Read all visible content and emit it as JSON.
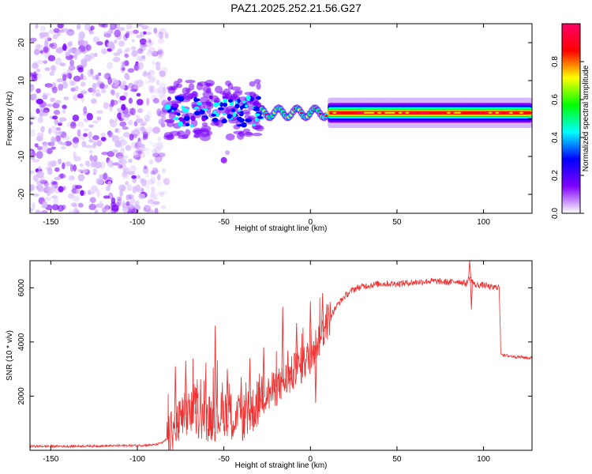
{
  "title": "PAZ1.2025.252.21.56.G27",
  "chart_data": [
    {
      "type": "heatmap",
      "name": "spectrogram",
      "xlabel": "Height of straight line (km)",
      "ylabel": "Frequency (Hz)",
      "xlim": [
        -162,
        128
      ],
      "ylim": [
        -25,
        25
      ],
      "xticks": [
        -150,
        -100,
        -50,
        0,
        50,
        100
      ],
      "yticks": [
        -20,
        -10,
        0,
        10,
        20
      ],
      "colorbar": {
        "label": "Normalized spectral amplitude",
        "range": [
          0.0,
          1.0
        ],
        "ticks": [
          0.0,
          0.2,
          0.4,
          0.6,
          0.8
        ],
        "tick_labels": [
          "0.0",
          "0.2",
          "0.4",
          "0.6",
          "0.8"
        ],
        "colormap": [
          "#ffffff",
          "#8000ff",
          "#0000ff",
          "#00ffff",
          "#00ff00",
          "#ffff00",
          "#ff0000",
          "#ff0066"
        ]
      },
      "features": [
        {
          "region": "noise",
          "x_range": [
            -162,
            -83
          ],
          "freq_range": [
            -25,
            25
          ],
          "amplitude": 0.05
        },
        {
          "region": "turbulent",
          "x_range": [
            -83,
            -28
          ],
          "freq_range": [
            -5,
            10
          ],
          "amplitude": 0.3
        },
        {
          "region": "isolated-blob",
          "x": -50,
          "freq": -11,
          "amplitude": 0.1
        },
        {
          "region": "wavy",
          "x_range": [
            -28,
            10
          ],
          "freq_range": [
            -1,
            4
          ],
          "amplitude": 0.5
        },
        {
          "region": "stable",
          "x_range": [
            10,
            128
          ],
          "freq_center": 1.5,
          "amplitude": 0.85
        }
      ]
    },
    {
      "type": "line",
      "name": "snr",
      "xlabel": "Height of straight line (km)",
      "ylabel": "SNR (10 * v/v)",
      "xlim": [
        -162,
        128
      ],
      "ylim": [
        0,
        7000
      ],
      "xticks": [
        -150,
        -100,
        -50,
        0,
        50,
        100
      ],
      "yticks": [
        2000,
        4000,
        6000
      ],
      "color": "#ee3333",
      "series": [
        {
          "name": "SNR",
          "x": [
            -162,
            -140,
            -120,
            -100,
            -90,
            -85,
            -80,
            -76,
            -72,
            -68,
            -64,
            -60,
            -56,
            -52,
            -48,
            -44,
            -40,
            -36,
            -32,
            -28,
            -24,
            -20,
            -16,
            -12,
            -8,
            -4,
            0,
            4,
            8,
            12,
            16,
            20,
            25,
            30,
            35,
            40,
            50,
            60,
            70,
            80,
            85,
            90,
            92,
            95,
            100,
            105,
            109,
            110,
            112,
            120,
            128
          ],
          "y": [
            150,
            150,
            160,
            180,
            200,
            300,
            600,
            1000,
            1300,
            1400,
            1300,
            1200,
            1200,
            1300,
            1400,
            1200,
            1200,
            1300,
            1600,
            1900,
            2100,
            2300,
            2500,
            2700,
            3000,
            3200,
            3500,
            4000,
            4500,
            5000,
            5400,
            5700,
            5950,
            6050,
            6100,
            6150,
            6150,
            6200,
            6250,
            6200,
            6250,
            6150,
            6400,
            6100,
            6100,
            6000,
            6050,
            3600,
            3500,
            3450,
            3400
          ]
        }
      ],
      "spikes": [
        {
          "x": -78,
          "y": 3100
        },
        {
          "x": -72,
          "y": 3300
        },
        {
          "x": -66,
          "y": 2300
        },
        {
          "x": -55,
          "y": 4600
        },
        {
          "x": -48,
          "y": 3000
        },
        {
          "x": -40,
          "y": 2700
        },
        {
          "x": -35,
          "y": 3400
        },
        {
          "x": -27,
          "y": 3800
        },
        {
          "x": -16,
          "y": 5300
        },
        {
          "x": -12,
          "y": 2500
        },
        {
          "x": -8,
          "y": 4700
        },
        {
          "x": 0,
          "y": 5500
        },
        {
          "x": 3,
          "y": 1750
        },
        {
          "x": 7,
          "y": 5800
        },
        {
          "x": 92,
          "y": 7000
        },
        {
          "x": 93,
          "y": 5200
        }
      ]
    }
  ]
}
